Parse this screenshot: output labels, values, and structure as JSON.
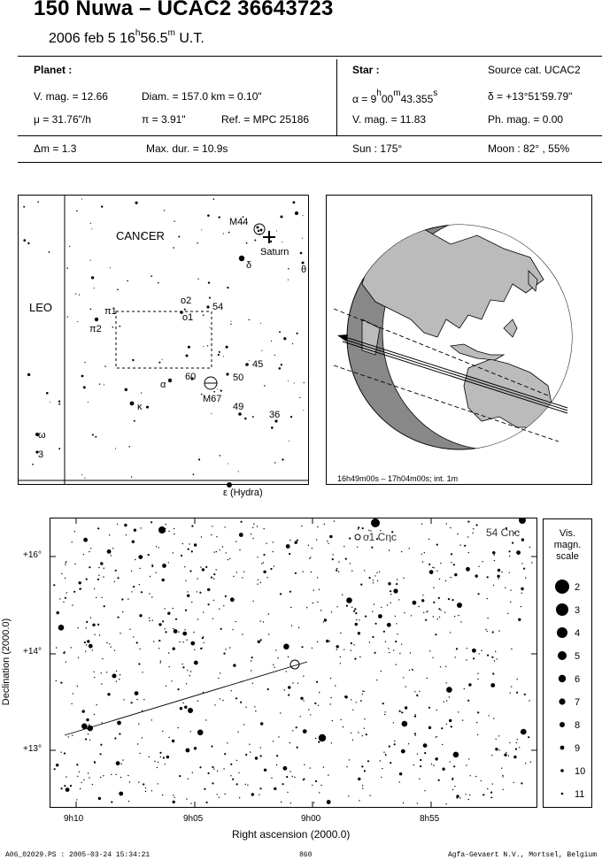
{
  "header": {
    "title": "150 Nuwa  –  UCAC2 36643723",
    "date": "2006 feb  5  16",
    "time_h": "h",
    "time_m": "56.5",
    "time_min": "m",
    "time_ut": " U.T."
  },
  "planet": {
    "label": "Planet :",
    "vmag": "V. mag. = 12.66",
    "diam": "Diam. = 157.0 km = 0.10\"",
    "mu": "μ =  31.76\"/h",
    "pi": "π =  3.91\"",
    "ref": "Ref. = MPC 25186",
    "dm": "Δm = 1.3",
    "maxdur": "Max. dur. = 10.9s"
  },
  "star": {
    "label": "Star :",
    "source": "Source cat.  UCAC2",
    "alpha_pre": "α =  9",
    "alpha_h": "h",
    "alpha_mid": "00",
    "alpha_m": "m",
    "alpha_s": "43.355",
    "alpha_sec": "s",
    "delta": "δ = +13°51'59.79\"",
    "vmag": "V. mag. = 11.83",
    "phmag": "Ph. mag. =  0.00",
    "sun": "Sun : 175°",
    "moon": "Moon :  82° , 55%"
  },
  "finder": {
    "constellation": "CANCER",
    "leo": "LEO",
    "m44": "M44",
    "saturn": "Saturn",
    "delta": "δ",
    "theta": "θ",
    "o2": "o2",
    "o1": "o1",
    "n54": "54",
    "pi1": "π1",
    "pi2": "π2",
    "n45": "45",
    "alpha": "α",
    "n60": "60",
    "n50": "50",
    "m67": "M67",
    "kappa": "κ",
    "n49": "49",
    "n36": "36",
    "omega": "ω",
    "n3": "3",
    "hydra": "ε (Hydra)"
  },
  "globe": {
    "caption": "16h49m00s – 17h04m00s; int.  1m"
  },
  "chart": {
    "o1cnc": "o1 Cnc",
    "cnc54": "54 Cnc",
    "dec16": "+16°",
    "dec14": "+14°",
    "dec13": "+13°",
    "ra910": "9h10",
    "ra905": "9h05",
    "ra900": "9h00",
    "ra855": "8h55",
    "xlabel": "Right ascension (2000.0)",
    "ylabel": "Declination (2000.0)"
  },
  "legend": {
    "title1": "Vis.",
    "title2": "magn.",
    "title3": "scale",
    "mags": [
      "2",
      "3",
      "4",
      "5",
      "6",
      "7",
      "8",
      "9",
      "10",
      "11"
    ]
  },
  "footer": {
    "left": "A06_02029.PS : 2005-03-24 15:34:21",
    "center": "860",
    "right": "Agfa-Gevaert N.V., Mortsel, Belgium"
  }
}
